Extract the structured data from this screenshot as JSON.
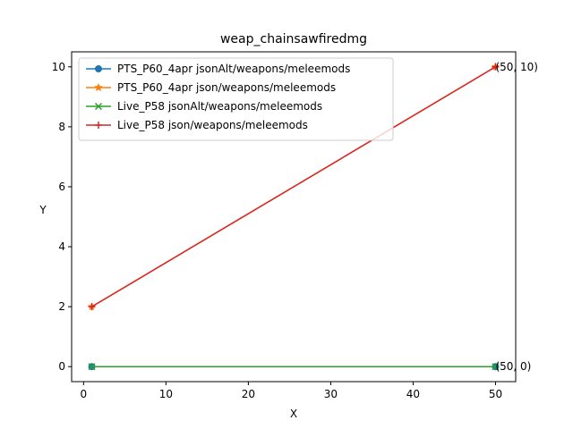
{
  "chart_data": {
    "type": "line",
    "title": "weap_chainsawfiredmg",
    "xlabel": "X",
    "ylabel": "Y",
    "xlim": [
      -1.45,
      52.45
    ],
    "ylim": [
      -0.5,
      10.5
    ],
    "xticks": [
      0,
      10,
      20,
      30,
      40,
      50
    ],
    "yticks": [
      0,
      2,
      4,
      6,
      8,
      10
    ],
    "grid": false,
    "legend_position": "upper-left",
    "series": [
      {
        "name": "PTS_P60_4apr jsonAlt/weapons/meleemods",
        "x": [
          1,
          50
        ],
        "y": [
          0,
          0
        ],
        "color": "#1f77b4",
        "marker": "circle"
      },
      {
        "name": "PTS_P60_4apr json/weapons/meleemods",
        "x": [
          1,
          50
        ],
        "y": [
          2,
          10
        ],
        "color": "#ff7f0e",
        "marker": "star"
      },
      {
        "name": "Live_P58 jsonAlt/weapons/meleemods",
        "x": [
          1,
          50
        ],
        "y": [
          0,
          0
        ],
        "color": "#2ca02c",
        "marker": "x"
      },
      {
        "name": "Live_P58 json/weapons/meleemods",
        "x": [
          1,
          50
        ],
        "y": [
          2,
          10
        ],
        "color": "#d62728",
        "marker": "plus"
      }
    ],
    "annotations": [
      {
        "text": "(50, 10)",
        "x": 50,
        "y": 10
      },
      {
        "text": "(50, 0)",
        "x": 50,
        "y": 0
      }
    ]
  }
}
